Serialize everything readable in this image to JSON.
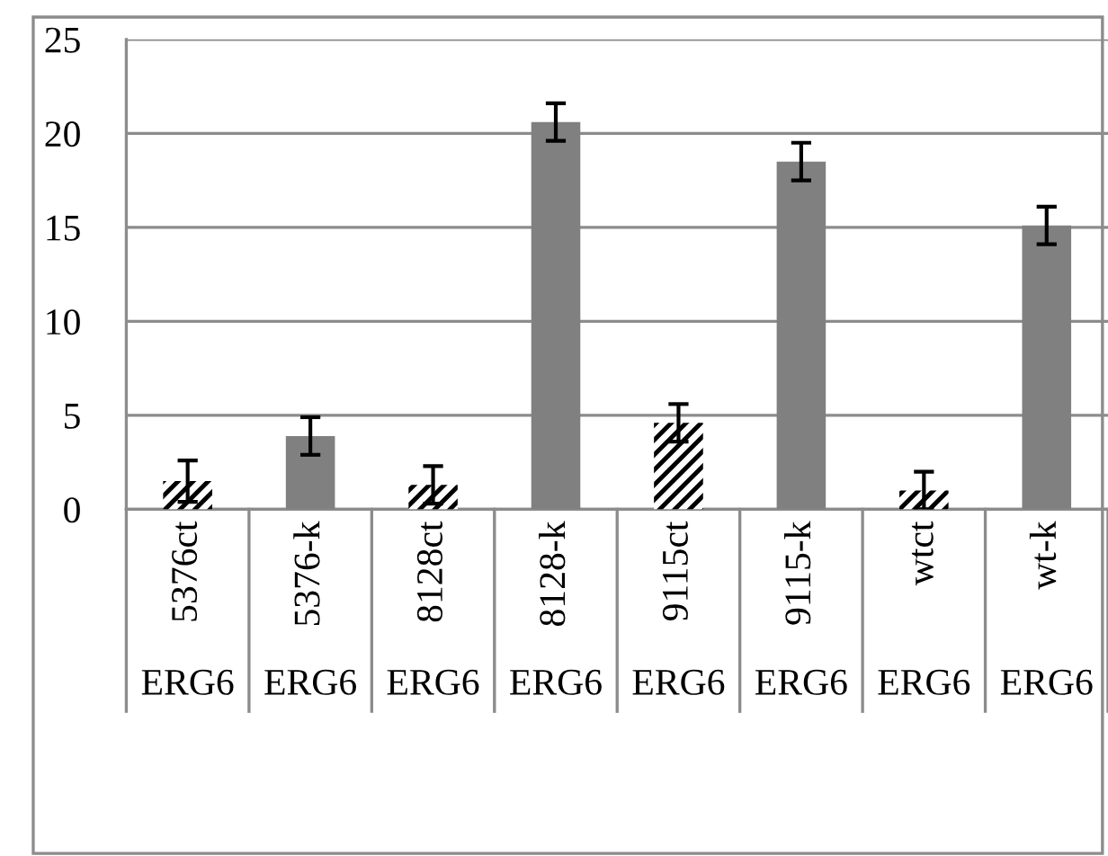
{
  "chart_data": {
    "type": "bar",
    "categories": [
      "5376ct",
      "5376-k",
      "8128ct",
      "8128-k",
      "9115ct",
      "9115-k",
      "wtct",
      "wt-k"
    ],
    "series": [
      {
        "color": "#000000",
        "values": [
          1.5,
          null,
          1.3,
          null,
          4.6,
          null,
          1.0,
          null
        ],
        "errors": [
          1.1,
          null,
          1.0,
          null,
          1.0,
          null,
          1.0,
          null
        ]
      },
      {
        "color": "#808080",
        "values": [
          null,
          3.9,
          null,
          20.6,
          null,
          18.5,
          null,
          15.1
        ],
        "errors": [
          null,
          1.0,
          null,
          1.0,
          null,
          1.0,
          null,
          1.0
        ]
      }
    ],
    "annotations": [
      "ERG6",
      "ERG6",
      "ERG6",
      "ERG6",
      "ERG6",
      "ERG6",
      "ERG6",
      "ERG6"
    ],
    "ylim": [
      0,
      25
    ],
    "yticks": [
      0,
      5,
      10,
      15,
      20,
      25
    ],
    "grid": "y",
    "legend": false
  }
}
